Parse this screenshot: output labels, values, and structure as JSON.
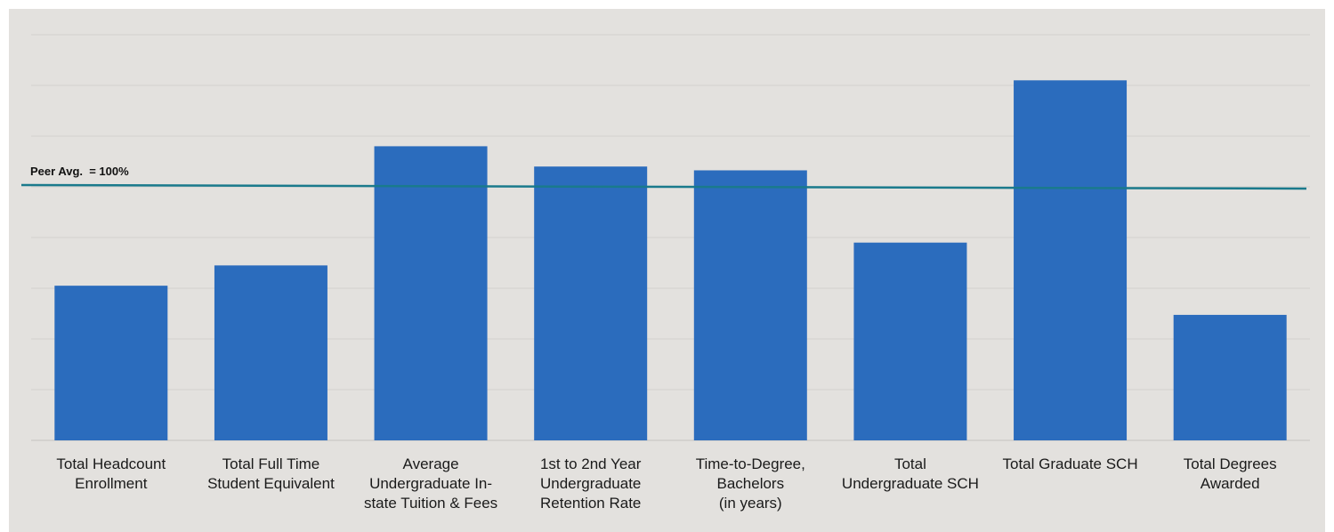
{
  "chart_data": {
    "type": "bar",
    "categories": [
      "Total Headcount\nEnrollment",
      "Total Full Time\nStudent Equivalent",
      "Average\nUndergraduate In-\nstate Tuition & Fees",
      "1st to 2nd Year\nUndergraduate\nRetention Rate",
      "Time-to-Degree,\nBachelors\n(in years)",
      "Total\nUndergraduate SCH",
      "Total Graduate SCH",
      "Total Degrees\nAwarded"
    ],
    "values": [
      61,
      69,
      116,
      108,
      106.5,
      78,
      142,
      49.5
    ],
    "ylim": [
      0,
      160
    ],
    "grid": true,
    "reference_line": {
      "value": 100,
      "label": "Peer Avg.  = 100%"
    },
    "colors": {
      "bar": "#2b6cbd",
      "reference": "#1a7a8c",
      "background": "#e3e1de",
      "grid": "#d3d1ce"
    }
  }
}
